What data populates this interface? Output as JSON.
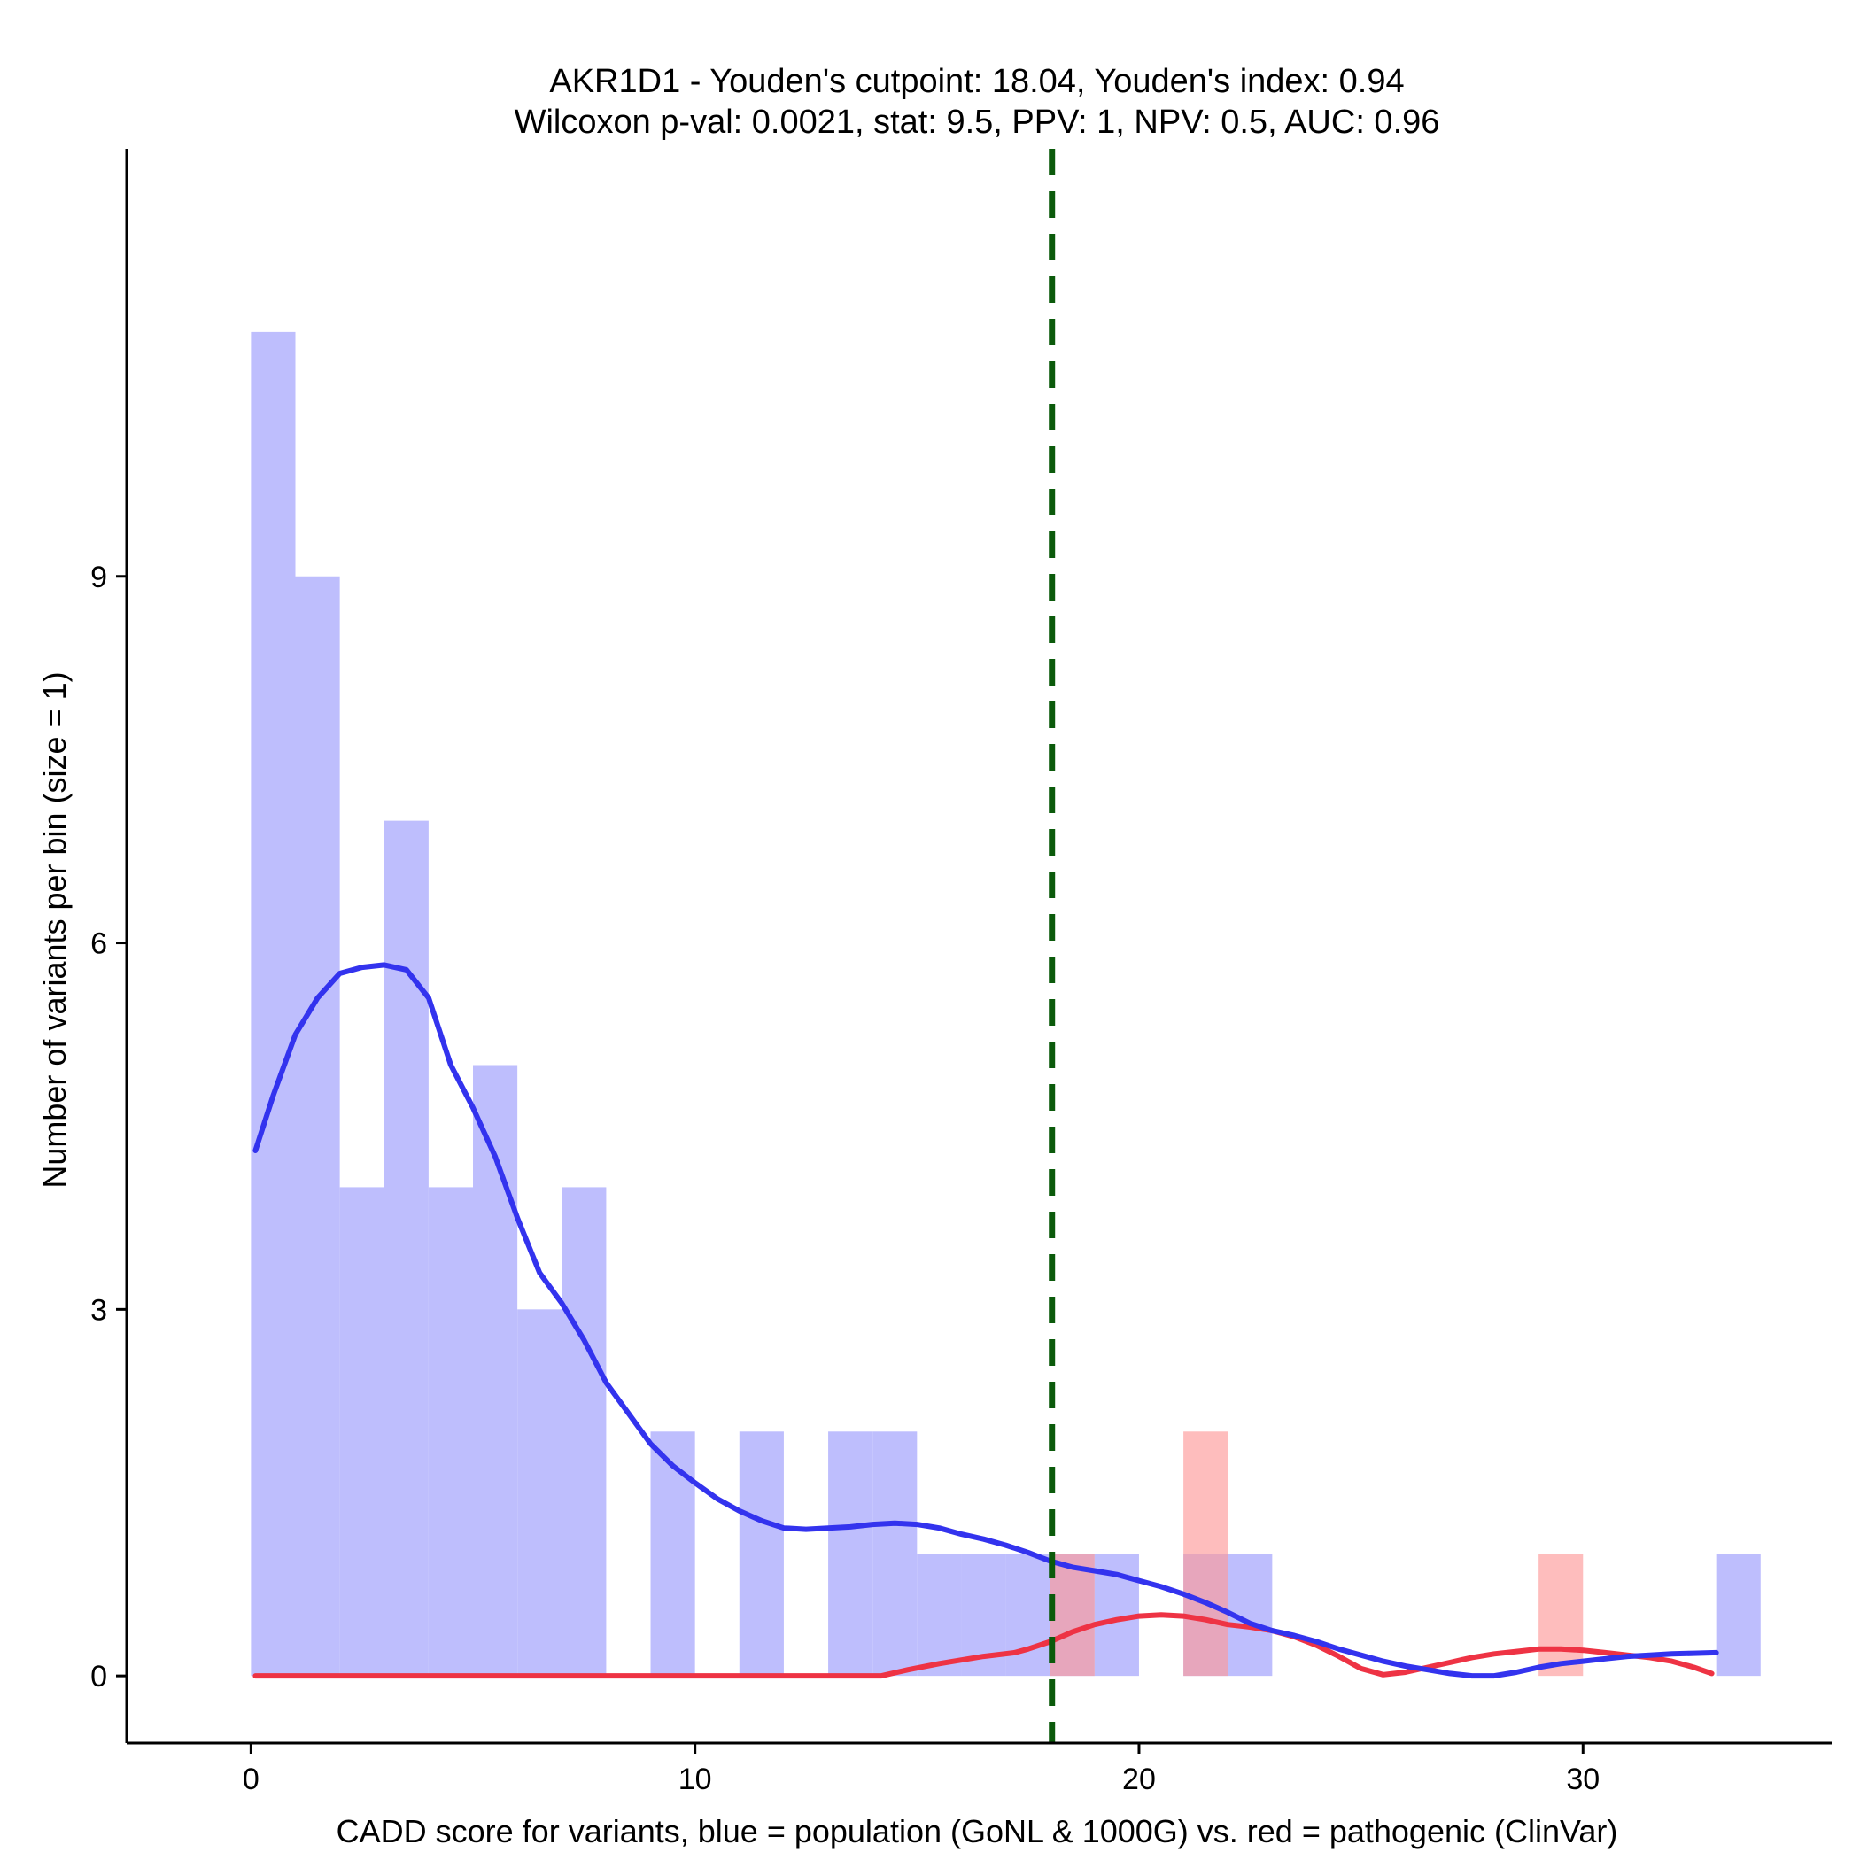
{
  "chart_data": {
    "type": "histogram",
    "title_line1": "AKR1D1 - Youden's cutpoint: 18.04, Youden's index: 0.94",
    "title_line2": "Wilcoxon p-val: 0.0021, stat: 9.5, PPV: 1, NPV: 0.5, AUC: 0.96",
    "xlabel": "CADD score for variants, blue = population (GoNL & 1000G) vs. red = pathogenic (ClinVar)",
    "ylabel": "Number of variants per bin (size = 1)",
    "xlim": [
      -2.8,
      35.6
    ],
    "ylim": [
      -0.55,
      12.5
    ],
    "x_ticks": [
      0,
      10,
      20,
      30
    ],
    "y_ticks": [
      0,
      3,
      6,
      9
    ],
    "bin_size": 1,
    "cutpoint": 18.04,
    "colors": {
      "population_bar": "#bebefd",
      "pathogenic_bar": "#fd9a9a",
      "population_line": "#3333ee",
      "pathogenic_line": "#ee3344",
      "cutpoint_line": "#0b5a0b",
      "axis": "#000000"
    },
    "series": [
      {
        "name": "population (GoNL & 1000G)",
        "bins": [
          {
            "x": 0,
            "count": 11
          },
          {
            "x": 1,
            "count": 9
          },
          {
            "x": 2,
            "count": 4
          },
          {
            "x": 3,
            "count": 7
          },
          {
            "x": 4,
            "count": 4
          },
          {
            "x": 5,
            "count": 5
          },
          {
            "x": 6,
            "count": 3
          },
          {
            "x": 7,
            "count": 4
          },
          {
            "x": 9,
            "count": 2
          },
          {
            "x": 11,
            "count": 2
          },
          {
            "x": 13,
            "count": 2
          },
          {
            "x": 14,
            "count": 2
          },
          {
            "x": 15,
            "count": 1
          },
          {
            "x": 16,
            "count": 1
          },
          {
            "x": 17,
            "count": 1
          },
          {
            "x": 18,
            "count": 1
          },
          {
            "x": 19,
            "count": 1
          },
          {
            "x": 21,
            "count": 1
          },
          {
            "x": 22,
            "count": 1
          },
          {
            "x": 33,
            "count": 1
          }
        ],
        "density": [
          [
            0.1,
            4.3
          ],
          [
            0.5,
            4.75
          ],
          [
            1.0,
            5.25
          ],
          [
            1.5,
            5.55
          ],
          [
            2.0,
            5.75
          ],
          [
            2.5,
            5.8
          ],
          [
            3.0,
            5.82
          ],
          [
            3.5,
            5.78
          ],
          [
            4.0,
            5.55
          ],
          [
            4.5,
            5.0
          ],
          [
            5.0,
            4.65
          ],
          [
            5.5,
            4.25
          ],
          [
            6.0,
            3.75
          ],
          [
            6.5,
            3.3
          ],
          [
            7.0,
            3.05
          ],
          [
            7.5,
            2.75
          ],
          [
            8.0,
            2.4
          ],
          [
            8.5,
            2.15
          ],
          [
            9.0,
            1.9
          ],
          [
            9.5,
            1.72
          ],
          [
            10.0,
            1.58
          ],
          [
            10.5,
            1.45
          ],
          [
            11.0,
            1.35
          ],
          [
            11.5,
            1.27
          ],
          [
            12.0,
            1.21
          ],
          [
            12.5,
            1.2
          ],
          [
            13.0,
            1.21
          ],
          [
            13.5,
            1.22
          ],
          [
            14.0,
            1.24
          ],
          [
            14.5,
            1.25
          ],
          [
            15.0,
            1.24
          ],
          [
            15.5,
            1.21
          ],
          [
            16.0,
            1.16
          ],
          [
            16.5,
            1.12
          ],
          [
            17.0,
            1.07
          ],
          [
            17.5,
            1.01
          ],
          [
            18.0,
            0.94
          ],
          [
            18.5,
            0.89
          ],
          [
            19.0,
            0.86
          ],
          [
            19.5,
            0.83
          ],
          [
            20.0,
            0.78
          ],
          [
            20.5,
            0.73
          ],
          [
            21.0,
            0.67
          ],
          [
            21.5,
            0.6
          ],
          [
            22.0,
            0.52
          ],
          [
            22.5,
            0.43
          ],
          [
            23.0,
            0.37
          ],
          [
            23.5,
            0.33
          ],
          [
            24.0,
            0.28
          ],
          [
            24.5,
            0.22
          ],
          [
            25.0,
            0.17
          ],
          [
            25.5,
            0.12
          ],
          [
            26.0,
            0.08
          ],
          [
            26.5,
            0.05
          ],
          [
            27.0,
            0.02
          ],
          [
            27.5,
            0.0
          ],
          [
            28.0,
            0.0
          ],
          [
            28.5,
            0.03
          ],
          [
            29.0,
            0.07
          ],
          [
            29.5,
            0.1
          ],
          [
            30.0,
            0.12
          ],
          [
            30.5,
            0.14
          ],
          [
            31.0,
            0.16
          ],
          [
            31.5,
            0.17
          ],
          [
            32.0,
            0.18
          ],
          [
            32.5,
            0.185
          ],
          [
            33.0,
            0.19
          ]
        ]
      },
      {
        "name": "pathogenic (ClinVar)",
        "bins": [
          {
            "x": 18,
            "count": 1
          },
          {
            "x": 21,
            "count": 2
          },
          {
            "x": 29,
            "count": 1
          }
        ],
        "density": [
          [
            0.1,
            0.0
          ],
          [
            14.2,
            0.0
          ],
          [
            14.8,
            0.05
          ],
          [
            15.5,
            0.1
          ],
          [
            16.5,
            0.16
          ],
          [
            17.2,
            0.19
          ],
          [
            17.5,
            0.22
          ],
          [
            18.0,
            0.28
          ],
          [
            18.5,
            0.36
          ],
          [
            19.0,
            0.42
          ],
          [
            19.5,
            0.46
          ],
          [
            20.0,
            0.49
          ],
          [
            20.5,
            0.5
          ],
          [
            21.0,
            0.49
          ],
          [
            21.5,
            0.46
          ],
          [
            22.0,
            0.42
          ],
          [
            22.5,
            0.4
          ],
          [
            23.0,
            0.37
          ],
          [
            23.5,
            0.32
          ],
          [
            24.0,
            0.25
          ],
          [
            24.5,
            0.16
          ],
          [
            25.0,
            0.06
          ],
          [
            25.5,
            0.01
          ],
          [
            26.0,
            0.03
          ],
          [
            26.5,
            0.07
          ],
          [
            27.0,
            0.11
          ],
          [
            27.5,
            0.15
          ],
          [
            28.0,
            0.18
          ],
          [
            28.5,
            0.2
          ],
          [
            29.0,
            0.22
          ],
          [
            29.5,
            0.22
          ],
          [
            30.0,
            0.21
          ],
          [
            30.5,
            0.19
          ],
          [
            31.0,
            0.17
          ],
          [
            31.5,
            0.15
          ],
          [
            32.0,
            0.12
          ],
          [
            32.5,
            0.07
          ],
          [
            32.9,
            0.02
          ]
        ]
      }
    ]
  }
}
